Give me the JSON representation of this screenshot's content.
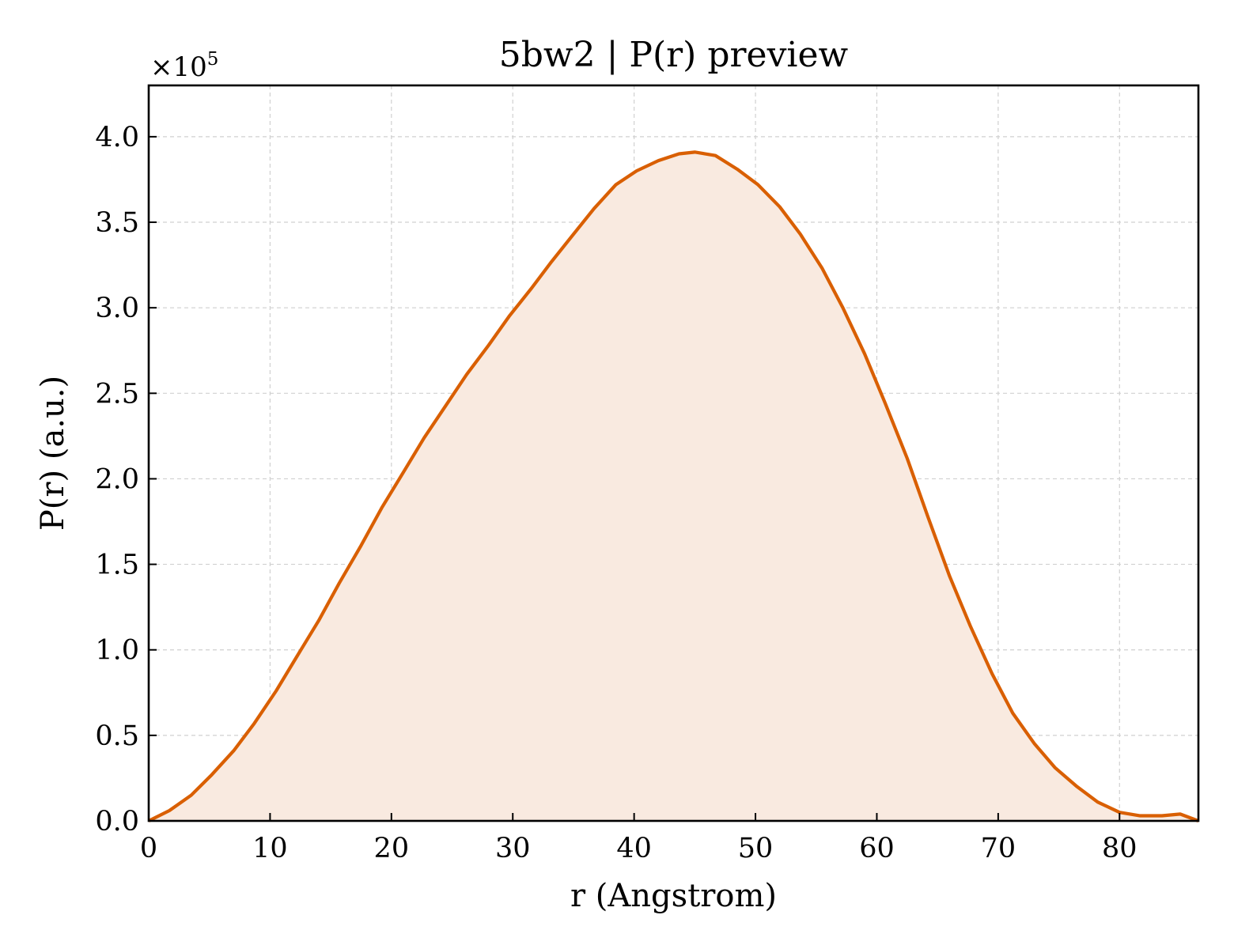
{
  "chart_data": {
    "type": "area",
    "title": "5bw2 | P(r) preview",
    "xlabel": "r (Angstrom)",
    "ylabel": "P(r) (a.u.)",
    "y_multiplier_label": "×10",
    "y_multiplier_exponent": "5",
    "xlim": [
      0,
      86.5
    ],
    "ylim": [
      0,
      4.3
    ],
    "x_ticks": [
      0,
      10,
      20,
      30,
      40,
      50,
      60,
      70,
      80
    ],
    "x_tick_labels": [
      "0",
      "10",
      "20",
      "30",
      "40",
      "50",
      "60",
      "70",
      "80"
    ],
    "y_ticks": [
      0,
      0.5,
      1.0,
      1.5,
      2.0,
      2.5,
      3.0,
      3.5,
      4.0
    ],
    "y_tick_labels": [
      "0.0",
      "0.5",
      "1.0",
      "1.5",
      "2.0",
      "2.5",
      "3.0",
      "3.5",
      "4.0"
    ],
    "grid": true,
    "line_color": "#d95f02",
    "fill_color": "#f9eae0",
    "series": [
      {
        "x": [
          0,
          1.7,
          3.5,
          5.2,
          7.0,
          8.7,
          10.5,
          12.2,
          14.0,
          15.7,
          17.5,
          19.2,
          21.0,
          22.7,
          24.5,
          26.2,
          28.0,
          29.7,
          31.5,
          33.2,
          35.0,
          36.7,
          38.5,
          40.2,
          42.0,
          43.7,
          45.0,
          46.7,
          48.5,
          50.2,
          52.0,
          53.7,
          55.5,
          57.2,
          59.0,
          60.7,
          62.5,
          64.2,
          66.0,
          67.7,
          69.5,
          71.2,
          73.0,
          74.7,
          76.5,
          78.2,
          80.0,
          81.7,
          83.5,
          85.0,
          86.5
        ],
        "values": [
          0.0,
          0.06,
          0.15,
          0.27,
          0.41,
          0.57,
          0.76,
          0.96,
          1.17,
          1.39,
          1.61,
          1.83,
          2.04,
          2.24,
          2.43,
          2.61,
          2.78,
          2.95,
          3.11,
          3.27,
          3.43,
          3.58,
          3.72,
          3.8,
          3.86,
          3.9,
          3.91,
          3.89,
          3.81,
          3.72,
          3.59,
          3.43,
          3.23,
          3.0,
          2.73,
          2.44,
          2.12,
          1.78,
          1.43,
          1.14,
          0.86,
          0.63,
          0.45,
          0.31,
          0.2,
          0.11,
          0.05,
          0.03,
          0.03,
          0.04,
          0.0
        ]
      }
    ]
  }
}
